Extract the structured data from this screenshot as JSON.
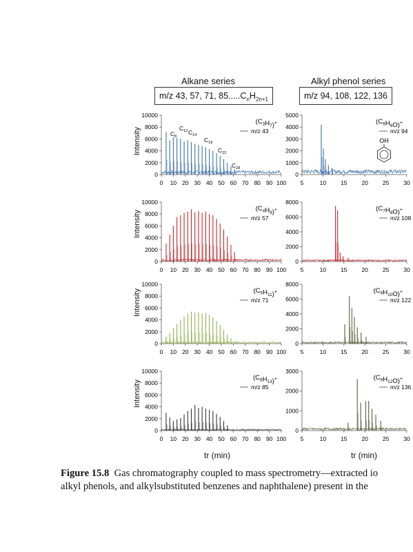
{
  "figure": {
    "titles": {
      "alkane": "Alkane series",
      "phenol": "Alkyl phenol series"
    },
    "boxes": {
      "alkane": "m/z 43, 57, 71, 85.....CnH2n+1",
      "phenol": "m/z 94, 108, 122, 136"
    },
    "y_label": "Intensity",
    "x_label": "tr (min)",
    "colors": {
      "m43": "#3a6fa8",
      "m57": "#c0282b",
      "m71": "#8fb04a",
      "m85": "#333333",
      "m94": "#3a6fa8",
      "m108": "#c0282b",
      "m122": "#55603a",
      "m136": "#55603a"
    },
    "caption": {
      "label": "Figure 15.8",
      "line1": "Gas chromatography coupled to mass spectrometry—extracted io",
      "line2": "alkyl phenols, and alkylsubstituted benzenes and naphthalene) present in the"
    }
  },
  "chart_data": [
    {
      "type": "line",
      "panel": "alkane-m43",
      "ion_formula": "(C3H7)+",
      "legend": "m/z 43",
      "x_ticks": [
        0,
        10,
        20,
        30,
        40,
        50,
        60,
        70,
        80,
        90,
        100
      ],
      "xlim": [
        0,
        100
      ],
      "y_ticks": [
        0,
        2000,
        4000,
        6000,
        8000,
        10000
      ],
      "ylim": [
        0,
        10000
      ],
      "peak_labels": [
        "C8",
        "C12",
        "C14",
        "C18",
        "C22",
        "C28"
      ],
      "peaks": [
        {
          "x": 4,
          "y": 7200
        },
        {
          "x": 7,
          "y": 5800
        },
        {
          "x": 10,
          "y": 6300
        },
        {
          "x": 13,
          "y": 6200
        },
        {
          "x": 16,
          "y": 6000
        },
        {
          "x": 19,
          "y": 5600
        },
        {
          "x": 22,
          "y": 5800
        },
        {
          "x": 25,
          "y": 5500
        },
        {
          "x": 28,
          "y": 5200
        },
        {
          "x": 31,
          "y": 5000
        },
        {
          "x": 34,
          "y": 4800
        },
        {
          "x": 37,
          "y": 4600
        },
        {
          "x": 40,
          "y": 4300
        },
        {
          "x": 43,
          "y": 4000
        },
        {
          "x": 46,
          "y": 3600
        },
        {
          "x": 49,
          "y": 3100
        },
        {
          "x": 52,
          "y": 2600
        },
        {
          "x": 55,
          "y": 2000
        },
        {
          "x": 58,
          "y": 1400
        },
        {
          "x": 61,
          "y": 900
        }
      ],
      "baseline": 400
    },
    {
      "type": "line",
      "panel": "phenol-m94",
      "ion_formula": "(C6H6O)+",
      "legend": "m/z 94",
      "structure_label": "OH",
      "x_ticks": [
        5,
        10,
        15,
        20,
        25,
        30
      ],
      "xlim": [
        5,
        30
      ],
      "y_ticks": [
        0,
        1000,
        2000,
        3000,
        4000,
        5000
      ],
      "ylim": [
        0,
        5000
      ],
      "peaks": [
        {
          "x": 9.6,
          "y": 4200
        },
        {
          "x": 10.1,
          "y": 2200
        },
        {
          "x": 10.6,
          "y": 1300
        },
        {
          "x": 11.3,
          "y": 800
        },
        {
          "x": 12.2,
          "y": 550
        }
      ],
      "baseline": 250
    },
    {
      "type": "line",
      "panel": "alkane-m57",
      "ion_formula": "(C4H9)+",
      "legend": "m/z 57",
      "x_ticks": [
        0,
        10,
        20,
        30,
        40,
        50,
        60,
        70,
        80,
        90,
        100
      ],
      "xlim": [
        0,
        100
      ],
      "y_ticks": [
        0,
        2000,
        4000,
        6000,
        8000,
        10000
      ],
      "ylim": [
        0,
        10000
      ],
      "peaks": [
        {
          "x": 4,
          "y": 3000
        },
        {
          "x": 7,
          "y": 4500
        },
        {
          "x": 10,
          "y": 6000
        },
        {
          "x": 13,
          "y": 7500
        },
        {
          "x": 16,
          "y": 7800
        },
        {
          "x": 19,
          "y": 8200
        },
        {
          "x": 22,
          "y": 8400
        },
        {
          "x": 25,
          "y": 8800
        },
        {
          "x": 28,
          "y": 8300
        },
        {
          "x": 31,
          "y": 8500
        },
        {
          "x": 34,
          "y": 8200
        },
        {
          "x": 37,
          "y": 8400
        },
        {
          "x": 40,
          "y": 8000
        },
        {
          "x": 43,
          "y": 7800
        },
        {
          "x": 46,
          "y": 7200
        },
        {
          "x": 49,
          "y": 6400
        },
        {
          "x": 52,
          "y": 5400
        },
        {
          "x": 55,
          "y": 4200
        },
        {
          "x": 58,
          "y": 2800
        },
        {
          "x": 61,
          "y": 1600
        }
      ],
      "baseline": 250
    },
    {
      "type": "line",
      "panel": "phenol-m108",
      "ion_formula": "(C7H8O)+",
      "legend": "m/z 108",
      "x_ticks": [
        5,
        10,
        15,
        20,
        25,
        30
      ],
      "xlim": [
        5,
        30
      ],
      "y_ticks": [
        0,
        2000,
        4000,
        6000,
        8000
      ],
      "ylim": [
        0,
        8000
      ],
      "peaks": [
        {
          "x": 13.0,
          "y": 7500
        },
        {
          "x": 13.5,
          "y": 6900
        },
        {
          "x": 14.1,
          "y": 1200
        },
        {
          "x": 14.8,
          "y": 700
        },
        {
          "x": 16.0,
          "y": 500
        }
      ],
      "baseline": 150
    },
    {
      "type": "line",
      "panel": "alkane-m71",
      "ion_formula": "(C5H11)+",
      "legend": "m/z 71",
      "x_ticks": [
        0,
        10,
        20,
        30,
        40,
        50,
        60,
        70,
        80,
        90,
        100
      ],
      "xlim": [
        0,
        100
      ],
      "y_ticks": [
        0,
        2000,
        4000,
        6000,
        8000,
        10000
      ],
      "ylim": [
        0,
        10000
      ],
      "peaks": [
        {
          "x": 4,
          "y": 1200
        },
        {
          "x": 7,
          "y": 1800
        },
        {
          "x": 10,
          "y": 2600
        },
        {
          "x": 13,
          "y": 3300
        },
        {
          "x": 16,
          "y": 4000
        },
        {
          "x": 19,
          "y": 4600
        },
        {
          "x": 22,
          "y": 5100
        },
        {
          "x": 25,
          "y": 5400
        },
        {
          "x": 28,
          "y": 5200
        },
        {
          "x": 31,
          "y": 5300
        },
        {
          "x": 34,
          "y": 5100
        },
        {
          "x": 37,
          "y": 5200
        },
        {
          "x": 40,
          "y": 4800
        },
        {
          "x": 43,
          "y": 4400
        },
        {
          "x": 46,
          "y": 3800
        },
        {
          "x": 49,
          "y": 3100
        },
        {
          "x": 52,
          "y": 2300
        },
        {
          "x": 55,
          "y": 1500
        },
        {
          "x": 58,
          "y": 900
        }
      ],
      "baseline": 200
    },
    {
      "type": "line",
      "panel": "phenol-m122",
      "ion_formula": "(C8H10O)+",
      "legend": "m/z 122",
      "x_ticks": [
        5,
        10,
        15,
        20,
        25,
        30
      ],
      "xlim": [
        5,
        30
      ],
      "y_ticks": [
        0,
        2000,
        4000,
        6000,
        8000
      ],
      "ylim": [
        0,
        8000
      ],
      "peaks": [
        {
          "x": 15.2,
          "y": 2600
        },
        {
          "x": 16.3,
          "y": 6400
        },
        {
          "x": 16.9,
          "y": 4800
        },
        {
          "x": 17.5,
          "y": 3600
        },
        {
          "x": 18.2,
          "y": 2200
        },
        {
          "x": 19.1,
          "y": 1500
        },
        {
          "x": 20.3,
          "y": 900
        }
      ],
      "baseline": 150
    },
    {
      "type": "line",
      "panel": "alkane-m85",
      "ion_formula": "(C6H13)+",
      "legend": "m/z 85",
      "x_ticks": [
        0,
        10,
        20,
        30,
        40,
        50,
        60,
        70,
        80,
        90,
        100
      ],
      "xlim": [
        0,
        100
      ],
      "y_ticks": [
        0,
        2000,
        4000,
        6000,
        8000,
        10000
      ],
      "ylim": [
        0,
        10000
      ],
      "peaks": [
        {
          "x": 4,
          "y": 3000
        },
        {
          "x": 7,
          "y": 2200
        },
        {
          "x": 10,
          "y": 1600
        },
        {
          "x": 13,
          "y": 1900
        },
        {
          "x": 16,
          "y": 2100
        },
        {
          "x": 19,
          "y": 2700
        },
        {
          "x": 22,
          "y": 3300
        },
        {
          "x": 25,
          "y": 3700
        },
        {
          "x": 28,
          "y": 4300
        },
        {
          "x": 31,
          "y": 3800
        },
        {
          "x": 34,
          "y": 4000
        },
        {
          "x": 37,
          "y": 3700
        },
        {
          "x": 40,
          "y": 3500
        },
        {
          "x": 43,
          "y": 3300
        },
        {
          "x": 46,
          "y": 2800
        },
        {
          "x": 49,
          "y": 2300
        },
        {
          "x": 52,
          "y": 1600
        },
        {
          "x": 55,
          "y": 900
        }
      ],
      "baseline": 150
    },
    {
      "type": "line",
      "panel": "phenol-m136",
      "ion_formula": "(C9H12O)+",
      "legend": "m/z 136",
      "x_ticks": [
        5,
        10,
        15,
        20,
        25,
        30
      ],
      "xlim": [
        5,
        30
      ],
      "y_ticks": [
        0,
        1000,
        2000,
        3000
      ],
      "ylim": [
        0,
        3000
      ],
      "peaks": [
        {
          "x": 16.0,
          "y": 400
        },
        {
          "x": 18.2,
          "y": 2600
        },
        {
          "x": 19.0,
          "y": 1400
        },
        {
          "x": 20.2,
          "y": 1500
        },
        {
          "x": 20.9,
          "y": 1500
        },
        {
          "x": 21.7,
          "y": 1100
        },
        {
          "x": 22.6,
          "y": 800
        },
        {
          "x": 23.8,
          "y": 500
        }
      ],
      "baseline": 80
    }
  ]
}
